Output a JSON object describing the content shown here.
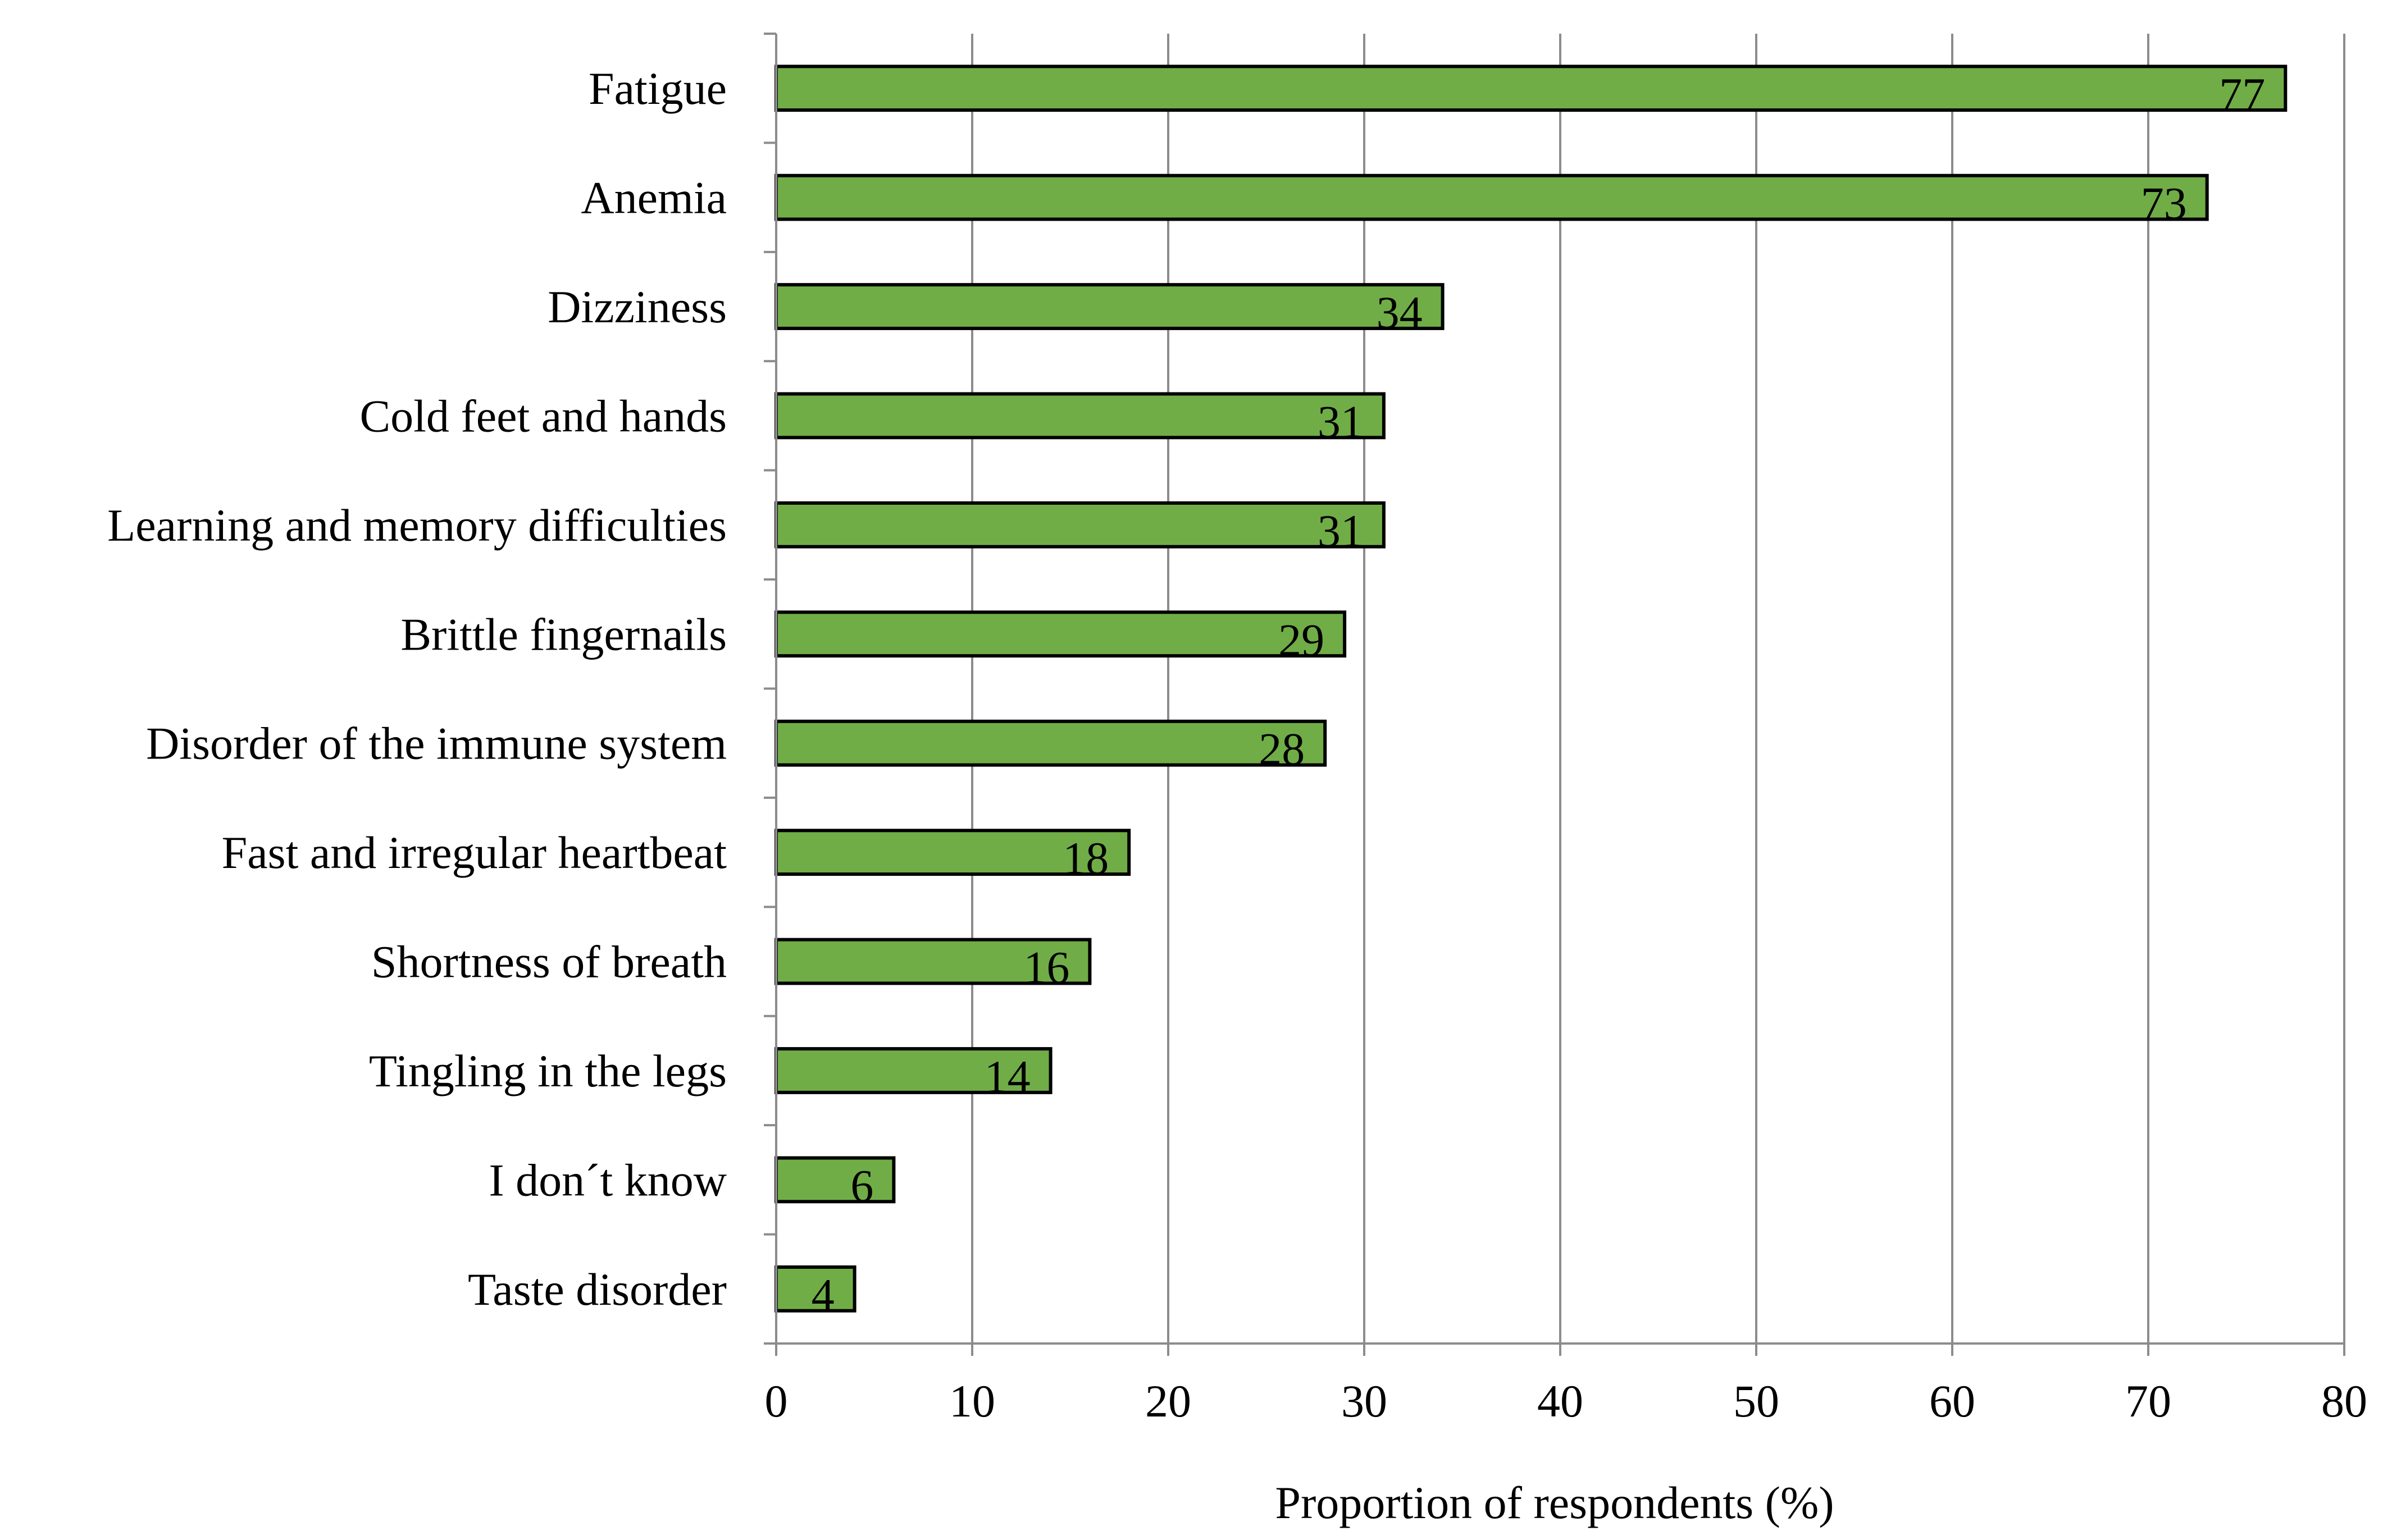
{
  "chart_data": {
    "type": "bar",
    "orientation": "horizontal",
    "categories": [
      "Fatigue",
      "Anemia",
      "Dizziness",
      "Cold feet and hands",
      "Learning and memory difficulties",
      "Brittle fingernails",
      "Disorder of the immune system",
      "Fast and irregular heartbeat",
      "Shortness of breath",
      "Tingling in the legs",
      "I don´t know",
      "Taste disorder"
    ],
    "values": [
      77,
      73,
      34,
      31,
      31,
      29,
      28,
      18,
      16,
      14,
      6,
      4
    ],
    "data_labels": [
      "77",
      "73",
      "34",
      "31",
      "31",
      "29",
      "28",
      "18",
      "16",
      "14",
      "6",
      "4"
    ],
    "title": "",
    "xlabel": "Proportion of respondents (%)",
    "ylabel": "",
    "xlim": [
      0,
      80
    ],
    "x_ticks": [
      0,
      10,
      20,
      30,
      40,
      50,
      60,
      70,
      80
    ],
    "x_tick_labels": [
      "0",
      "10",
      "20",
      "30",
      "40",
      "50",
      "60",
      "70",
      "80"
    ],
    "grid": "vertical",
    "legend": "none",
    "colors": {
      "bar_fill": "#70ad47",
      "bar_stroke": "#000000",
      "grid": "#8c8c8c",
      "axis": "#8c8c8c"
    }
  }
}
